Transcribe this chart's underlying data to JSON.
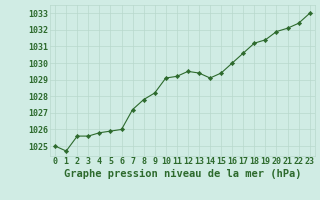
{
  "x": [
    0,
    1,
    2,
    3,
    4,
    5,
    6,
    7,
    8,
    9,
    10,
    11,
    12,
    13,
    14,
    15,
    16,
    17,
    18,
    19,
    20,
    21,
    22,
    23
  ],
  "y": [
    1025.0,
    1024.7,
    1025.6,
    1025.6,
    1025.8,
    1025.9,
    1026.0,
    1027.2,
    1027.8,
    1028.2,
    1029.1,
    1029.2,
    1029.5,
    1029.4,
    1029.1,
    1029.4,
    1030.0,
    1030.6,
    1031.2,
    1031.4,
    1031.9,
    1032.1,
    1032.4,
    1033.0
  ],
  "line_color": "#2d6a2d",
  "marker_color": "#2d6a2d",
  "bg_color": "#d0ece4",
  "grid_color": "#b8d8cc",
  "title": "Graphe pression niveau de la mer (hPa)",
  "title_color": "#2d6a2d",
  "ylim": [
    1024.4,
    1033.5
  ],
  "yticks": [
    1025,
    1026,
    1027,
    1028,
    1029,
    1030,
    1031,
    1032,
    1033
  ],
  "title_fontsize": 7.5,
  "tick_fontsize": 6.0
}
